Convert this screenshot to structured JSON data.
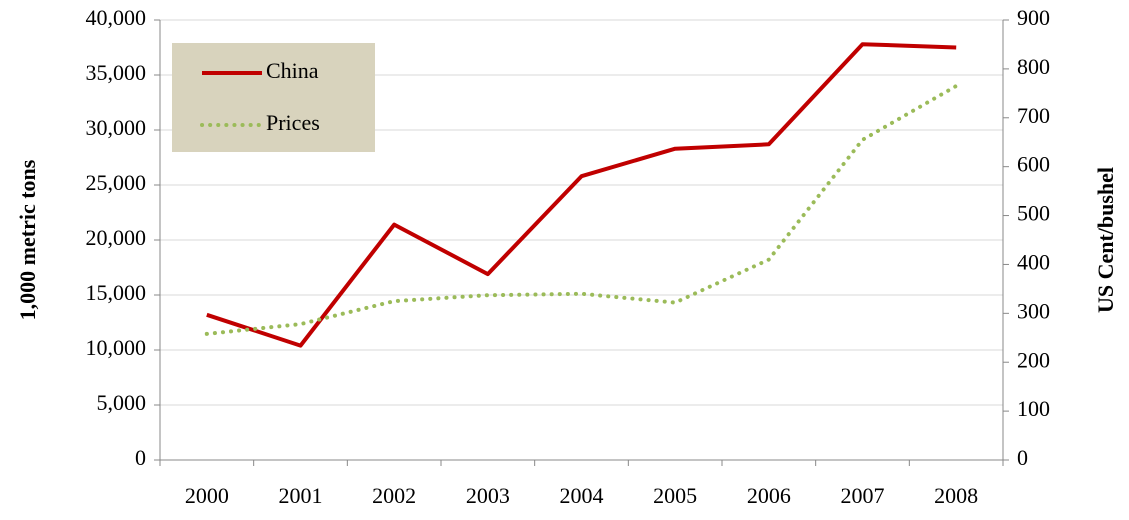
{
  "chart_data": {
    "type": "line",
    "categories": [
      "2000",
      "2001",
      "2002",
      "2003",
      "2004",
      "2005",
      "2006",
      "2007",
      "2008"
    ],
    "series": [
      {
        "name": "China",
        "color": "#c00000",
        "style": "solid",
        "values": [
          13200,
          10400,
          21400,
          16900,
          25800,
          28300,
          28700,
          37800,
          37500
        ]
      },
      {
        "name": "Prices",
        "color": "#9bbb59",
        "style": "dotted",
        "axis": "y2",
        "values": [
          258,
          278,
          325,
          337,
          340,
          322,
          410,
          655,
          765
        ]
      }
    ],
    "ylabel": "1,000 metric tons",
    "y2label": "US Cent/bushel",
    "ylim": [
      0,
      40000
    ],
    "yticks": [
      0,
      {
        "value": 5000,
        "label": "5,000"
      },
      {
        "value": 10000,
        "label": "10,000"
      },
      {
        "value": 15000,
        "label": "15,000"
      },
      {
        "value": 20000,
        "label": "20,000"
      },
      {
        "value": 25000,
        "label": "25,000"
      },
      {
        "value": 30000,
        "label": "30,000"
      },
      {
        "value": 35000,
        "label": "35,000"
      },
      {
        "value": 40000,
        "label": "40,000"
      }
    ],
    "y2lim": [
      0,
      900
    ],
    "y2ticks": [
      0,
      100,
      200,
      300,
      400,
      500,
      600,
      700,
      800,
      900
    ],
    "grid": true,
    "legend": "upper left"
  }
}
